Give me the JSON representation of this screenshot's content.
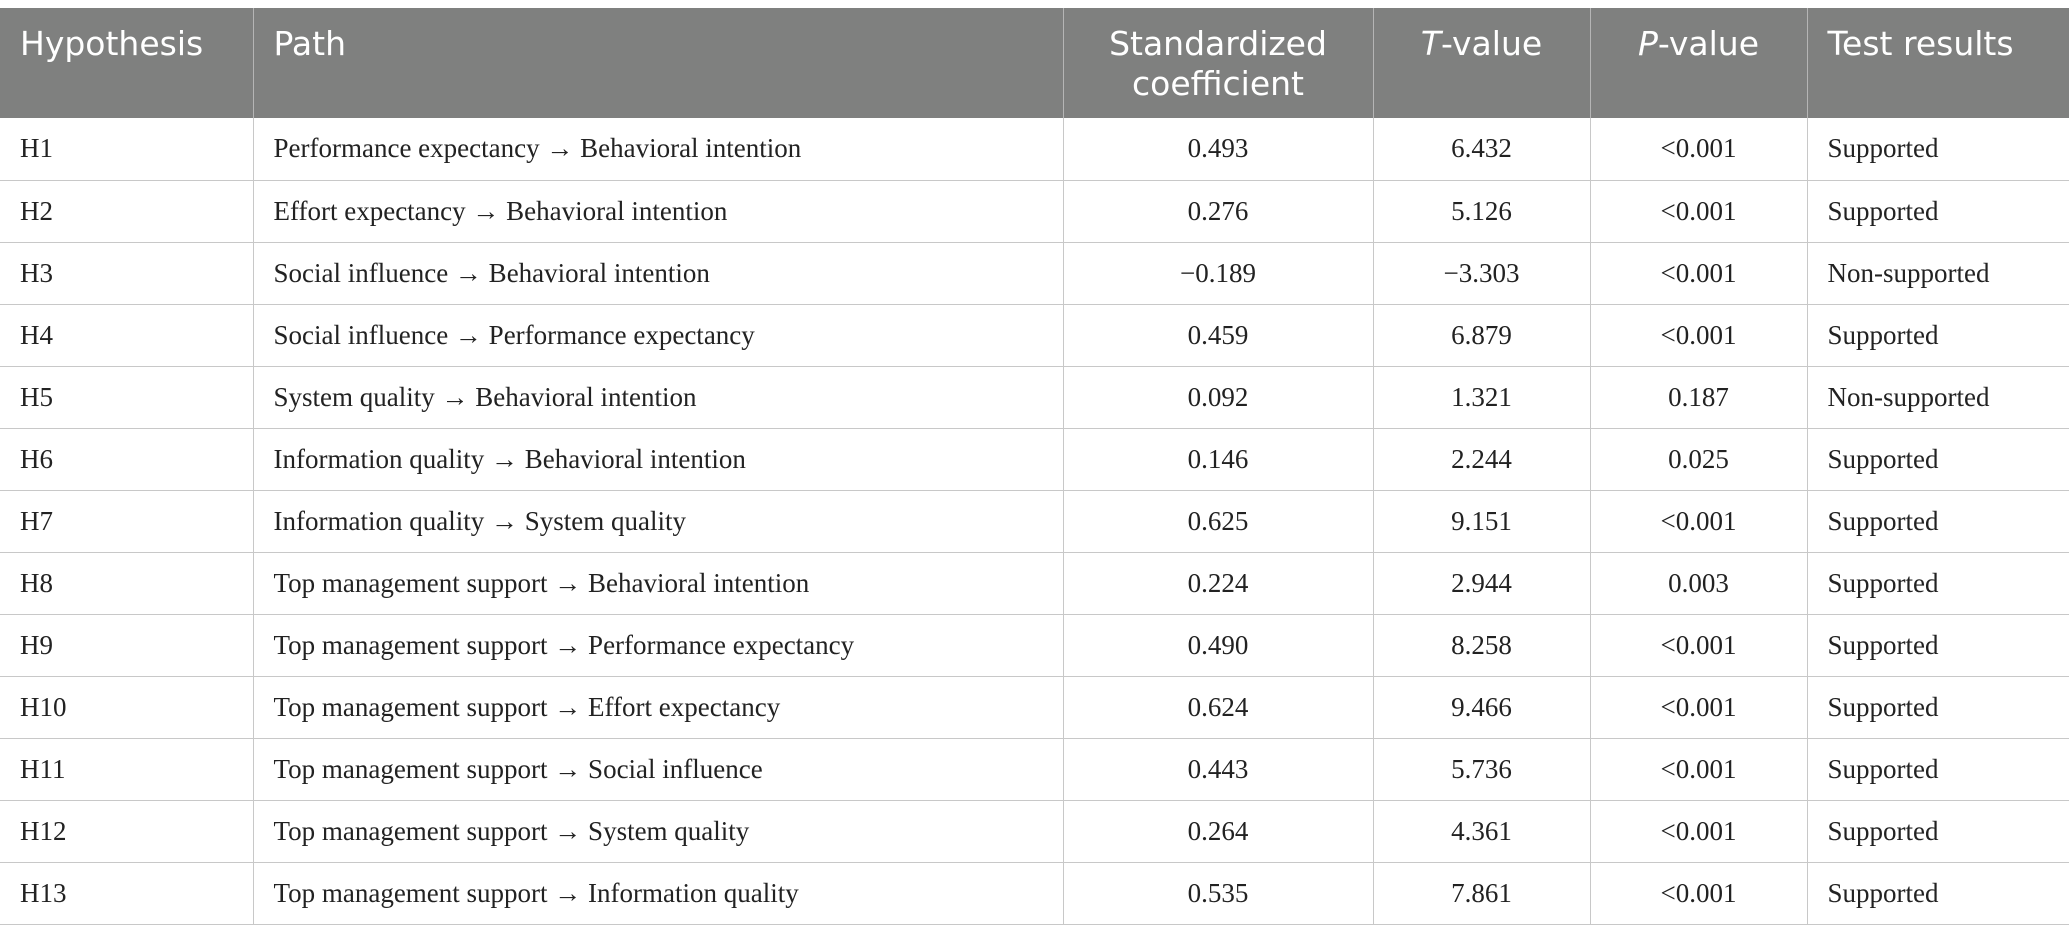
{
  "table": {
    "headers": {
      "hypothesis": "Hypothesis",
      "path": "Path",
      "coefficient": "Standardized coefficient",
      "t_letter": "T",
      "t_rest": "-value",
      "p_letter": "P",
      "p_rest": "-value",
      "result": "Test results"
    },
    "rows": [
      {
        "h": "H1",
        "path": "Performance expectancy → Behavioral intention",
        "coef": "0.493",
        "t": "6.432",
        "p": "<0.001",
        "result": "Supported"
      },
      {
        "h": "H2",
        "path": "Effort expectancy → Behavioral intention",
        "coef": "0.276",
        "t": "5.126",
        "p": "<0.001",
        "result": "Supported"
      },
      {
        "h": "H3",
        "path": "Social influence → Behavioral intention",
        "coef": "−0.189",
        "t": "−3.303",
        "p": "<0.001",
        "result": "Non-supported"
      },
      {
        "h": "H4",
        "path": "Social influence → Performance expectancy",
        "coef": "0.459",
        "t": "6.879",
        "p": "<0.001",
        "result": "Supported"
      },
      {
        "h": "H5",
        "path": "System quality → Behavioral intention",
        "coef": "0.092",
        "t": "1.321",
        "p": "0.187",
        "result": "Non-supported"
      },
      {
        "h": "H6",
        "path": "Information quality → Behavioral intention",
        "coef": "0.146",
        "t": "2.244",
        "p": "0.025",
        "result": "Supported"
      },
      {
        "h": "H7",
        "path": "Information quality → System quality",
        "coef": "0.625",
        "t": "9.151",
        "p": "<0.001",
        "result": "Supported"
      },
      {
        "h": "H8",
        "path": "Top management support → Behavioral intention",
        "coef": "0.224",
        "t": "2.944",
        "p": "0.003",
        "result": "Supported"
      },
      {
        "h": "H9",
        "path": "Top management support → Performance expectancy",
        "coef": "0.490",
        "t": "8.258",
        "p": "<0.001",
        "result": "Supported"
      },
      {
        "h": "H10",
        "path": "Top management support → Effort expectancy",
        "coef": "0.624",
        "t": "9.466",
        "p": "<0.001",
        "result": "Supported"
      },
      {
        "h": "H11",
        "path": "Top management support → Social influence",
        "coef": "0.443",
        "t": "5.736",
        "p": "<0.001",
        "result": "Supported"
      },
      {
        "h": "H12",
        "path": "Top management support → System quality",
        "coef": "0.264",
        "t": "4.361",
        "p": "<0.001",
        "result": "Supported"
      },
      {
        "h": "H13",
        "path": "Top management support → Information quality",
        "coef": "0.535",
        "t": "7.861",
        "p": "<0.001",
        "result": "Supported"
      }
    ]
  }
}
